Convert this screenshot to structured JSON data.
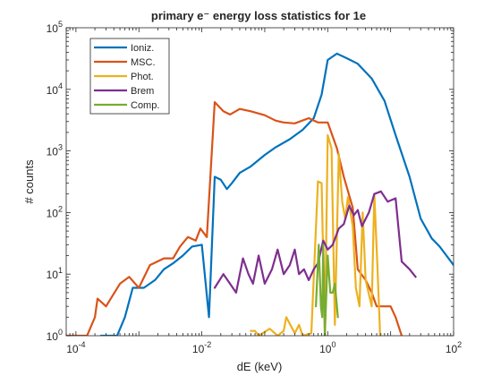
{
  "chart_data": {
    "type": "line",
    "title": "primary e⁻ energy loss statistics for 1e",
    "xlabel": "dE (keV)",
    "ylabel": "# counts",
    "xscale": "log",
    "yscale": "log",
    "xlim": [
      7e-05,
      100
    ],
    "ylim": [
      1,
      100000
    ],
    "grid": false,
    "legend_position": "top-left",
    "x_ticks": [
      {
        "value": 0.0001,
        "base": "10",
        "exp": "-4"
      },
      {
        "value": 0.01,
        "base": "10",
        "exp": "-2"
      },
      {
        "value": 1,
        "base": "10",
        "exp": "0"
      },
      {
        "value": 100,
        "base": "10",
        "exp": "2"
      }
    ],
    "y_ticks": [
      {
        "value": 1,
        "base": "10",
        "exp": "0"
      },
      {
        "value": 10,
        "base": "10",
        "exp": "1"
      },
      {
        "value": 100,
        "base": "10",
        "exp": "2"
      },
      {
        "value": 1000,
        "base": "10",
        "exp": "3"
      },
      {
        "value": 10000,
        "base": "10",
        "exp": "4"
      },
      {
        "value": 100000,
        "base": "10",
        "exp": "5"
      }
    ],
    "series": [
      {
        "name": "Ioniz.",
        "color": "#0072BD",
        "points": [
          [
            0.00025,
            1
          ],
          [
            0.00045,
            1
          ],
          [
            0.0006,
            2
          ],
          [
            0.0008,
            6
          ],
          [
            0.0012,
            6
          ],
          [
            0.0018,
            8
          ],
          [
            0.0025,
            12
          ],
          [
            0.0035,
            15
          ],
          [
            0.005,
            20
          ],
          [
            0.007,
            28
          ],
          [
            0.01,
            30
          ],
          [
            0.013,
            2
          ],
          [
            0.016,
            380
          ],
          [
            0.02,
            340
          ],
          [
            0.025,
            240
          ],
          [
            0.03,
            300
          ],
          [
            0.04,
            440
          ],
          [
            0.06,
            560
          ],
          [
            0.1,
            860
          ],
          [
            0.15,
            1150
          ],
          [
            0.25,
            1550
          ],
          [
            0.4,
            2200
          ],
          [
            0.6,
            3400
          ],
          [
            0.8,
            8200
          ],
          [
            1.0,
            30000
          ],
          [
            1.4,
            38000
          ],
          [
            2.0,
            32000
          ],
          [
            3.0,
            26000
          ],
          [
            5.0,
            15000
          ],
          [
            8.0,
            6500
          ],
          [
            12,
            1800
          ],
          [
            20,
            380
          ],
          [
            30,
            80
          ],
          [
            45,
            38
          ],
          [
            60,
            28
          ],
          [
            100,
            14
          ]
        ]
      },
      {
        "name": "MSC.",
        "color": "#D95319",
        "points": [
          [
            7e-05,
            1
          ],
          [
            8.5e-05,
            1
          ],
          [
            0.00011,
            1
          ],
          [
            0.00015,
            1
          ],
          [
            0.0002,
            2
          ],
          [
            0.00022,
            4
          ],
          [
            0.0003,
            3
          ],
          [
            0.0005,
            7
          ],
          [
            0.0007,
            9
          ],
          [
            0.001,
            6
          ],
          [
            0.0015,
            14
          ],
          [
            0.0025,
            18
          ],
          [
            0.0035,
            18
          ],
          [
            0.0045,
            28
          ],
          [
            0.006,
            40
          ],
          [
            0.008,
            35
          ],
          [
            0.0095,
            55
          ],
          [
            0.012,
            40
          ],
          [
            0.016,
            6200
          ],
          [
            0.022,
            4400
          ],
          [
            0.028,
            3900
          ],
          [
            0.04,
            4800
          ],
          [
            0.06,
            4400
          ],
          [
            0.1,
            3800
          ],
          [
            0.15,
            3100
          ],
          [
            0.2,
            2900
          ],
          [
            0.3,
            2800
          ],
          [
            0.5,
            3400
          ],
          [
            0.7,
            2900
          ],
          [
            1.0,
            2900
          ],
          [
            1.4,
            1100
          ],
          [
            1.8,
            380
          ],
          [
            2.5,
            120
          ],
          [
            3.0,
            12
          ],
          [
            4.0,
            8
          ],
          [
            5.0,
            5
          ],
          [
            6.0,
            3
          ],
          [
            8.0,
            3
          ],
          [
            10,
            3
          ],
          [
            12,
            2
          ],
          [
            15,
            1
          ]
        ]
      },
      {
        "name": "Phot.",
        "color": "#EDB120",
        "points": [
          [
            0.06,
            1.2
          ],
          [
            0.07,
            1.2
          ],
          [
            0.08,
            1
          ],
          [
            0.12,
            1.3
          ],
          [
            0.16,
            1
          ],
          [
            0.2,
            1.2
          ],
          [
            0.22,
            2
          ],
          [
            0.3,
            1.1
          ],
          [
            0.35,
            1.5
          ],
          [
            0.4,
            1
          ],
          [
            0.55,
            1.1
          ],
          [
            0.7,
            320
          ],
          [
            0.8,
            300
          ],
          [
            0.9,
            1
          ],
          [
            1.0,
            1800
          ],
          [
            1.15,
            1100
          ],
          [
            1.3,
            1.5
          ],
          [
            1.5,
            900
          ],
          [
            1.7,
            150
          ],
          [
            1.9,
            80
          ],
          [
            2.1,
            180
          ],
          [
            2.5,
            60
          ],
          [
            2.8,
            6
          ],
          [
            3.2,
            3
          ],
          [
            3.6,
            100
          ],
          [
            4.0,
            8
          ],
          [
            5.0,
            3
          ],
          [
            5.5,
            200
          ],
          [
            6.2,
            12
          ],
          [
            6.8,
            1
          ]
        ]
      },
      {
        "name": "Brem",
        "color": "#7E2F8E",
        "points": [
          [
            0.016,
            6
          ],
          [
            0.022,
            10
          ],
          [
            0.028,
            7
          ],
          [
            0.035,
            5
          ],
          [
            0.045,
            18
          ],
          [
            0.055,
            10
          ],
          [
            0.065,
            7
          ],
          [
            0.08,
            20
          ],
          [
            0.1,
            7
          ],
          [
            0.13,
            12
          ],
          [
            0.16,
            25
          ],
          [
            0.2,
            10
          ],
          [
            0.25,
            14
          ],
          [
            0.3,
            25
          ],
          [
            0.35,
            10
          ],
          [
            0.42,
            12
          ],
          [
            0.5,
            8
          ],
          [
            0.6,
            12
          ],
          [
            0.7,
            15
          ],
          [
            0.85,
            35
          ],
          [
            1.0,
            25
          ],
          [
            1.2,
            30
          ],
          [
            1.5,
            55
          ],
          [
            1.8,
            65
          ],
          [
            2.2,
            130
          ],
          [
            2.6,
            90
          ],
          [
            3.0,
            110
          ],
          [
            3.5,
            60
          ],
          [
            4.5,
            100
          ],
          [
            5.5,
            200
          ],
          [
            7.0,
            220
          ],
          [
            9.0,
            150
          ],
          [
            12,
            170
          ],
          [
            15,
            16
          ],
          [
            20,
            12
          ],
          [
            25,
            9
          ]
        ]
      },
      {
        "name": "Comp.",
        "color": "#77AC30",
        "points": [
          [
            0.65,
            3
          ],
          [
            0.72,
            30
          ],
          [
            0.78,
            3
          ],
          [
            0.82,
            2
          ],
          [
            0.85,
            30
          ],
          [
            0.9,
            1
          ],
          [
            1.0,
            20
          ],
          [
            1.1,
            5
          ],
          [
            1.2,
            5
          ],
          [
            1.3,
            7
          ],
          [
            1.45,
            2
          ]
        ]
      }
    ]
  }
}
